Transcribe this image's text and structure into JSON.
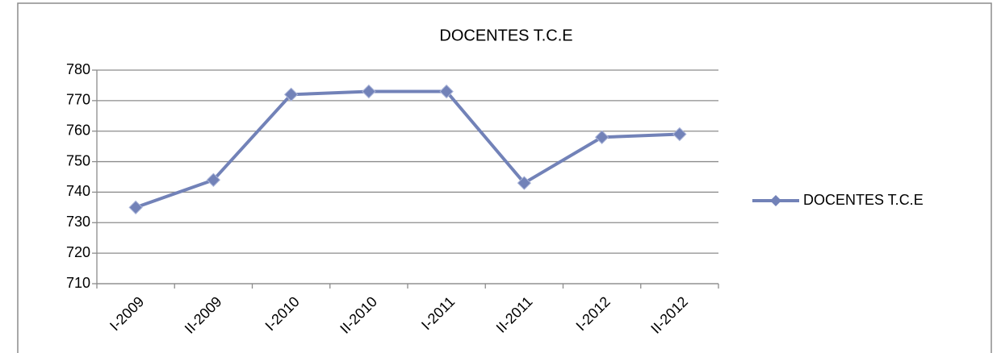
{
  "chart_data": {
    "type": "line",
    "title": "DOCENTES T.C.E",
    "categories": [
      "I-2009",
      "II-2009",
      "I-2010",
      "II-2010",
      "I-2011",
      "II-2011",
      "I-2012",
      "II-2012"
    ],
    "series": [
      {
        "name": "DOCENTES T.C.E",
        "color": "#7282b8",
        "values": [
          735,
          744,
          772,
          773,
          773,
          743,
          758,
          759
        ]
      }
    ],
    "ylim": [
      710,
      780
    ],
    "yticks": [
      710,
      720,
      730,
      740,
      750,
      760,
      770,
      780
    ],
    "grid": true,
    "legend": "right"
  }
}
